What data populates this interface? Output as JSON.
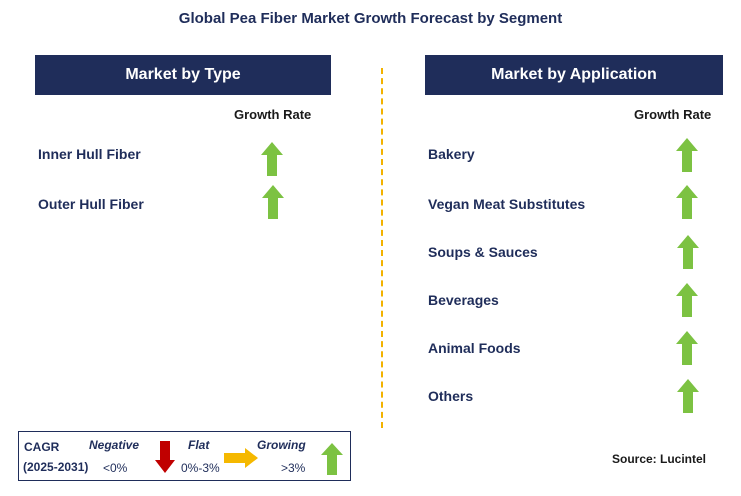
{
  "title": "Global Pea Fiber Market Growth Forecast by Segment",
  "left_panel": {
    "header": "Market by Type",
    "column_label": "Growth Rate",
    "rows": [
      {
        "label": "Inner Hull Fiber",
        "trend": "growing"
      },
      {
        "label": "Outer Hull Fiber",
        "trend": "growing"
      }
    ]
  },
  "right_panel": {
    "header": "Market by Application",
    "column_label": "Growth Rate",
    "rows": [
      {
        "label": "Bakery",
        "trend": "growing"
      },
      {
        "label": "Vegan Meat Substitutes",
        "trend": "growing"
      },
      {
        "label": "Soups & Sauces",
        "trend": "growing"
      },
      {
        "label": "Beverages",
        "trend": "growing"
      },
      {
        "label": "Animal Foods",
        "trend": "growing"
      },
      {
        "label": "Others",
        "trend": "growing"
      }
    ]
  },
  "legend": {
    "cagr_label": "CAGR",
    "period": "(2025-2031)",
    "negative": {
      "label": "Negative",
      "range": "<0%",
      "icon": "red-down-arrow-icon"
    },
    "flat": {
      "label": "Flat",
      "range": "0%-3%",
      "icon": "orange-right-arrow-icon"
    },
    "growing": {
      "label": "Growing",
      "range": ">3%",
      "icon": "green-up-arrow-icon"
    }
  },
  "source": "Source: Lucintel",
  "colors": {
    "header_bg": "#1f2d5a",
    "divider": "#f2b200",
    "growing": "#7cc242",
    "negative": "#c00000",
    "flat": "#f5b800"
  }
}
